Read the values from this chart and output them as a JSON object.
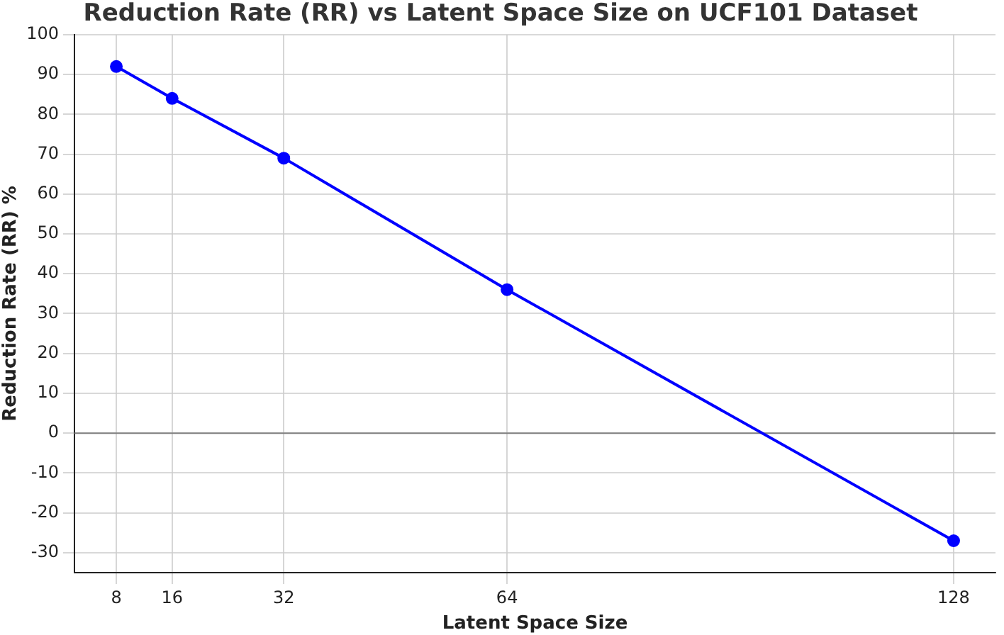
{
  "chart_data": {
    "type": "line",
    "title": "Reduction Rate (RR) vs Latent Space Size on UCF101 Dataset",
    "xlabel": "Latent Space Size",
    "ylabel": "Reduction Rate (RR) %",
    "x": [
      8,
      16,
      32,
      64,
      128
    ],
    "series": [
      {
        "color": "#0000ff",
        "values": [
          92,
          84,
          69,
          36,
          -27
        ]
      }
    ],
    "xlim": [
      2,
      134
    ],
    "xticks": [
      8,
      16,
      32,
      64,
      128
    ],
    "ylim": [
      -35,
      100
    ],
    "yticks": [
      -30,
      -20,
      -10,
      0,
      10,
      20,
      30,
      40,
      50,
      60,
      70,
      80,
      90,
      100
    ],
    "ref_lines": [
      {
        "axis": "y",
        "value": 0,
        "color": "#808080"
      }
    ],
    "grid": true,
    "legend": false,
    "marker": "circle",
    "line_style": "solid"
  }
}
